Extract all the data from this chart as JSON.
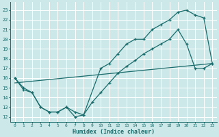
{
  "xlabel": "Humidex (Indice chaleur)",
  "bg_color": "#cce8e8",
  "line_color": "#1a6b6b",
  "grid_color": "#ffffff",
  "xlim": [
    -0.5,
    23.5
  ],
  "ylim": [
    11.5,
    23.8
  ],
  "yticks": [
    12,
    13,
    14,
    15,
    16,
    17,
    18,
    19,
    20,
    21,
    22,
    23
  ],
  "xticks": [
    0,
    1,
    2,
    3,
    4,
    5,
    6,
    7,
    8,
    9,
    10,
    11,
    12,
    13,
    14,
    15,
    16,
    17,
    18,
    19,
    20,
    21,
    22,
    23
  ],
  "series1_x": [
    0,
    1,
    2,
    3,
    4,
    5,
    6,
    7,
    8,
    10,
    11,
    12,
    13,
    14,
    15,
    16,
    17,
    18,
    19,
    20,
    21,
    22,
    23
  ],
  "series1_y": [
    16.0,
    15.0,
    14.5,
    13.0,
    12.5,
    12.5,
    13.0,
    12.0,
    12.2,
    17.0,
    17.5,
    18.5,
    19.5,
    20.0,
    20.0,
    21.0,
    21.5,
    22.0,
    22.8,
    23.0,
    22.5,
    22.2,
    17.5
  ],
  "series2_x": [
    0,
    1,
    2,
    3,
    4,
    5,
    6,
    7,
    8,
    9,
    10,
    11,
    12,
    13,
    14,
    15,
    16,
    17,
    18,
    19,
    20,
    21,
    22,
    23
  ],
  "series2_y": [
    16.0,
    14.8,
    14.5,
    13.0,
    12.5,
    12.5,
    13.0,
    12.5,
    12.2,
    13.5,
    14.5,
    15.5,
    16.5,
    17.2,
    17.8,
    18.5,
    19.0,
    19.5,
    20.0,
    21.0,
    19.5,
    17.0,
    17.0,
    17.5
  ],
  "series3_x": [
    0,
    23
  ],
  "series3_y": [
    15.5,
    17.5
  ],
  "figsize": [
    3.2,
    2.0
  ],
  "dpi": 100
}
